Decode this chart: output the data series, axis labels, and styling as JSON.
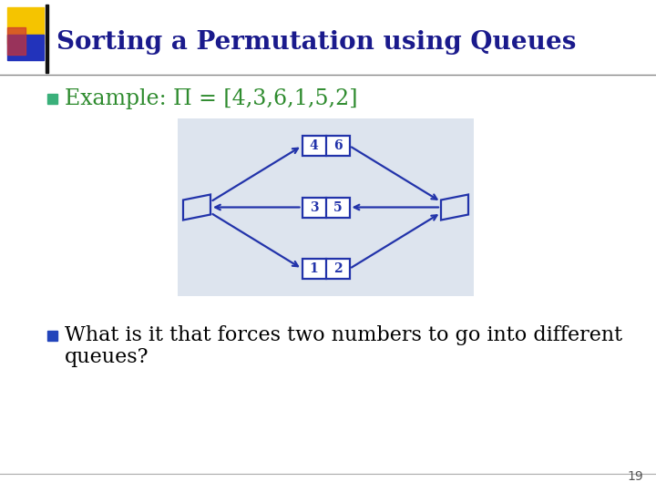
{
  "title": "Sorting a Permutation using Queues",
  "title_color": "#1a1a8c",
  "title_fontsize": 20,
  "bg_color": "#ffffff",
  "bullet1_text": "Example: Π = [4,3,6,1,5,2]",
  "bullet1_color": "#2e8b2e",
  "bullet1_fontsize": 17,
  "bullet2_line1": "What is it that forces two numbers to go into different",
  "bullet2_line2": "queues?",
  "bullet2_color": "#000000",
  "bullet2_fontsize": 16,
  "slide_number": "19",
  "yellow_color": "#f5c400",
  "blue_color": "#2233bb",
  "red_color": "#cc3333",
  "diagram_bg": "#dde4ee",
  "diagram_color": "#2233aa",
  "bullet1_sq_color": "#3ab07a",
  "bullet2_sq_color": "#2244bb"
}
